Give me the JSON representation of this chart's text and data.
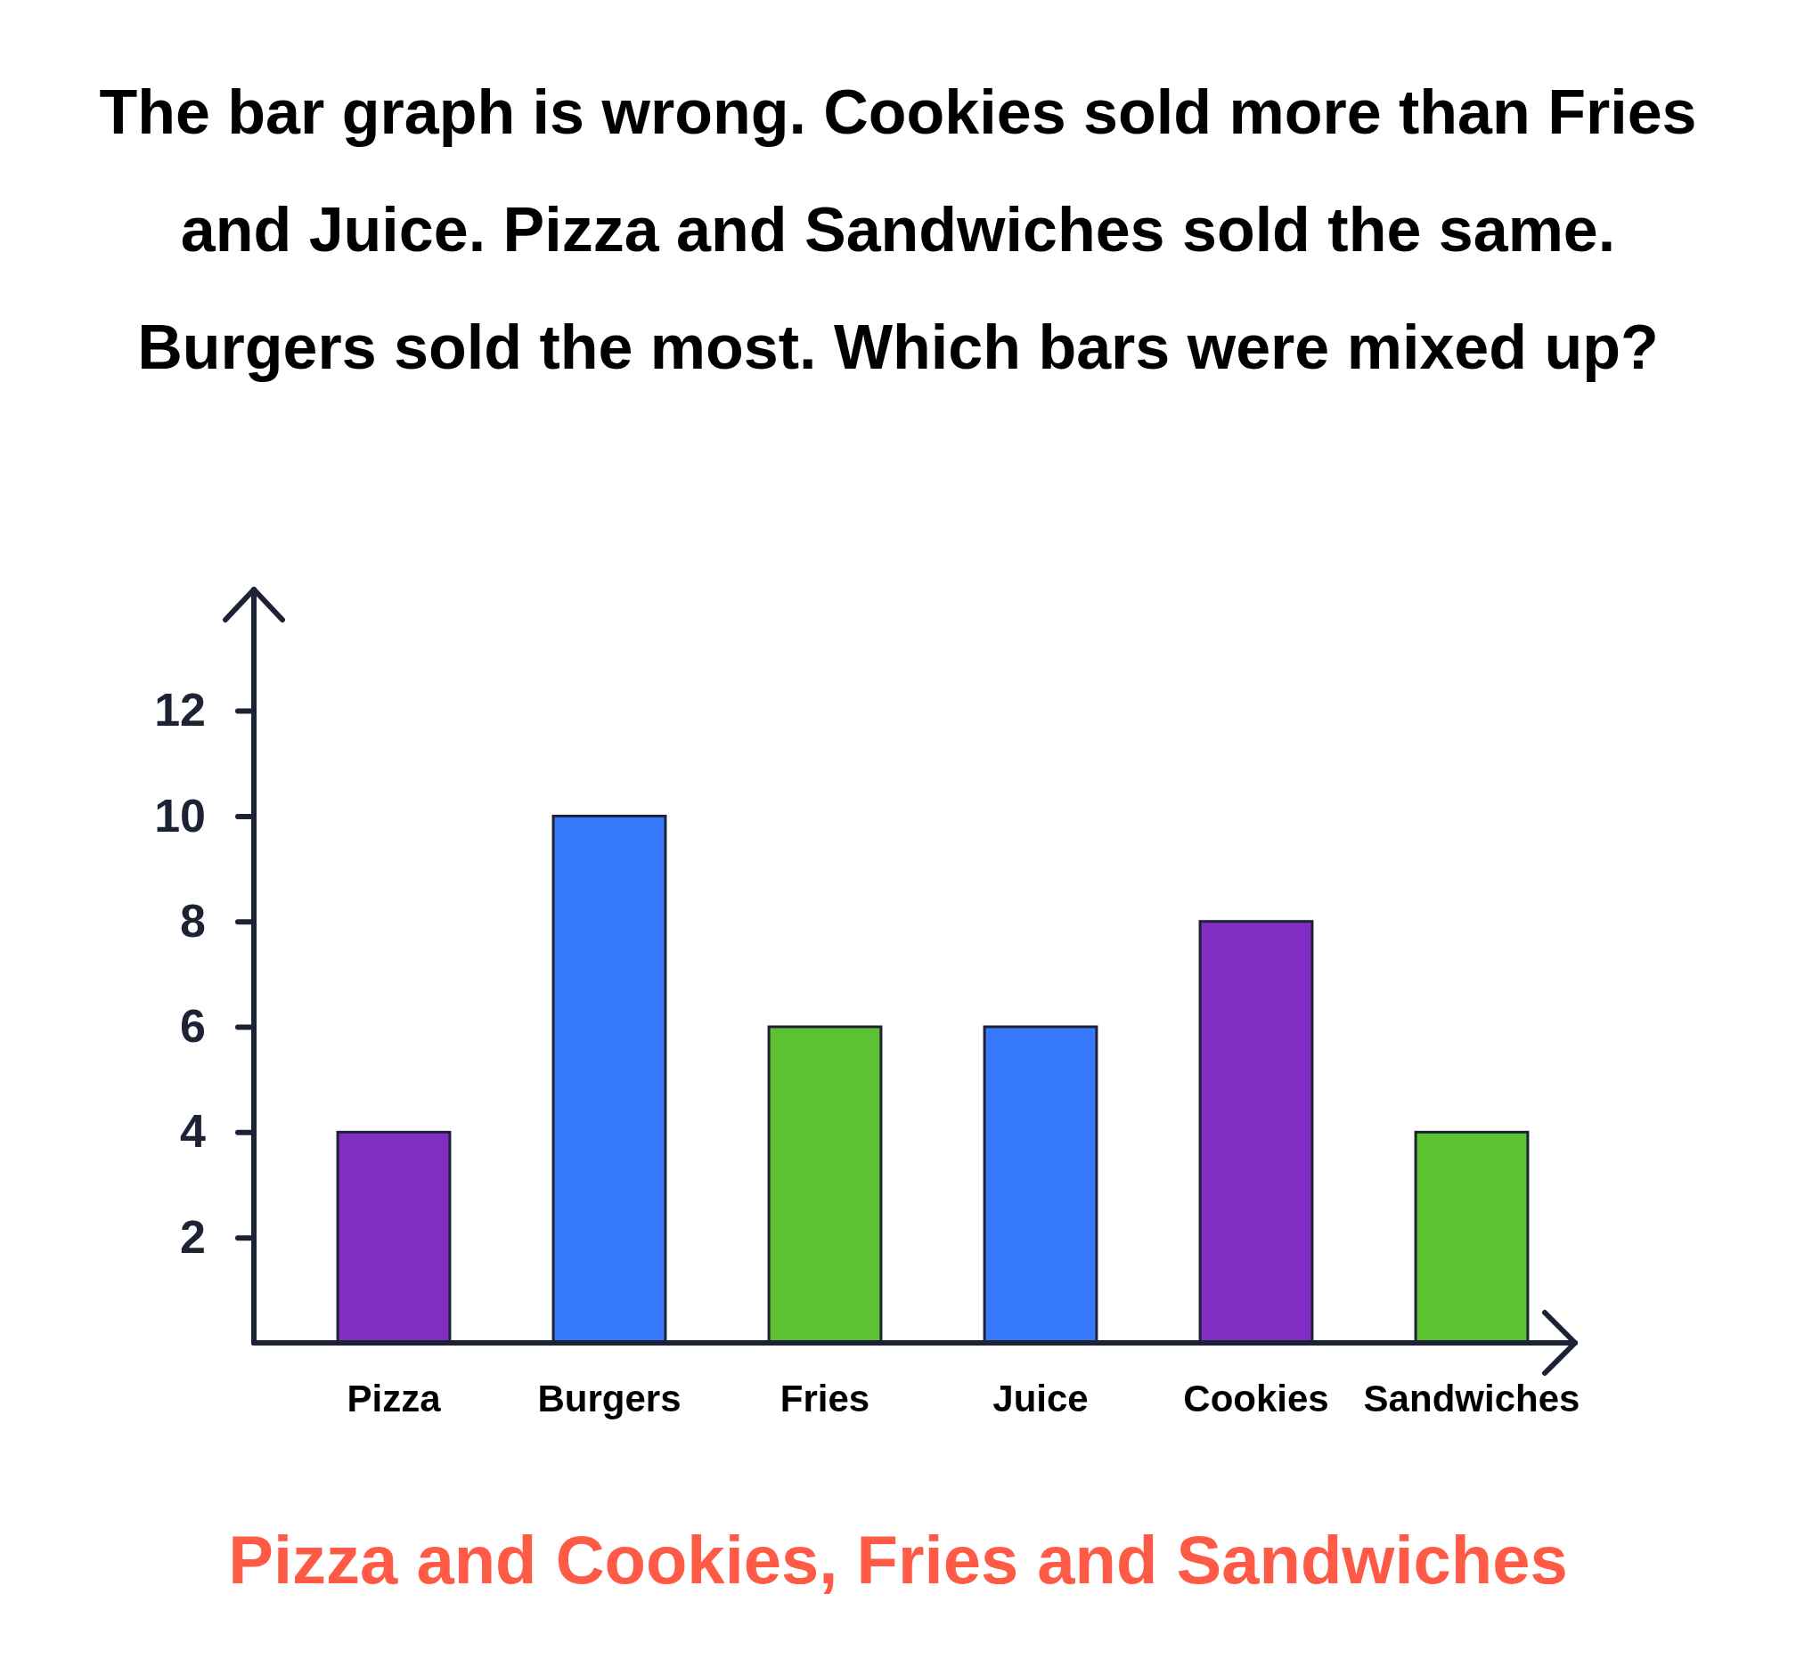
{
  "chart_data": {
    "type": "bar",
    "title": "The bar graph is wrong. Cookies sold more than Fries and Juice. Pizza and Sandwiches sold the same. Burgers sold the most. Which bars were mixed up?",
    "categories": [
      "Pizza",
      "Burgers",
      "Fries",
      "Juice",
      "Cookies",
      "Sandwiches"
    ],
    "values": [
      4,
      10,
      6,
      6,
      8,
      4
    ],
    "colors": [
      "#812ec4",
      "#3779fd",
      "#5cc232",
      "#3779fd",
      "#812ec4",
      "#5cc232"
    ],
    "ylim": [
      0,
      14.3
    ],
    "yticks": [
      2,
      4,
      6,
      8,
      10,
      12
    ],
    "grid": false,
    "annotations": [
      "Pizza and Cookies, Fries and Sandwiches"
    ]
  }
}
